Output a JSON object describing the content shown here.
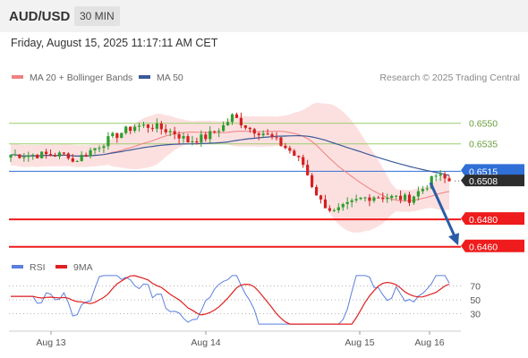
{
  "header": {
    "pair": "AUD/USD",
    "timeframe": "30 MIN"
  },
  "datetime": "Friday, August 15, 2025 11:17:11 AM CET",
  "legend": {
    "ma20_label": "MA 20 + Bollinger Bands",
    "ma50_label": "MA 50",
    "ma20_color": "#f08080",
    "ma50_color": "#3b5998"
  },
  "copyright": "Research © 2025 Trading Central",
  "rsi_legend": {
    "rsi_label": "RSI",
    "ma9_label": "9MA",
    "rsi_color": "#5b7fdc",
    "ma9_color": "#e02020"
  },
  "chart_data": {
    "type": "candlestick",
    "x_labels": [
      "Aug 13",
      "Aug 14",
      "Aug 15",
      "Aug 16"
    ],
    "price_range": [
      0.6452,
      0.6572
    ],
    "current_price": "0.6515",
    "last_close": "0.6508",
    "levels": [
      {
        "value": 0.655,
        "label": "0.6550",
        "kind": "resistance"
      },
      {
        "value": 0.6535,
        "label": "0.6535",
        "kind": "resistance"
      },
      {
        "value": 0.6515,
        "label": "0.6515",
        "kind": "current"
      },
      {
        "value": 0.6508,
        "label": "0.6508",
        "kind": "last"
      },
      {
        "value": 0.648,
        "label": "0.6480",
        "kind": "target"
      },
      {
        "value": 0.646,
        "label": "0.6460",
        "kind": "target"
      }
    ],
    "forecast_arrow": {
      "from": 0.6508,
      "to": 0.6461
    },
    "rsi_levels": [
      70,
      50,
      30
    ]
  }
}
